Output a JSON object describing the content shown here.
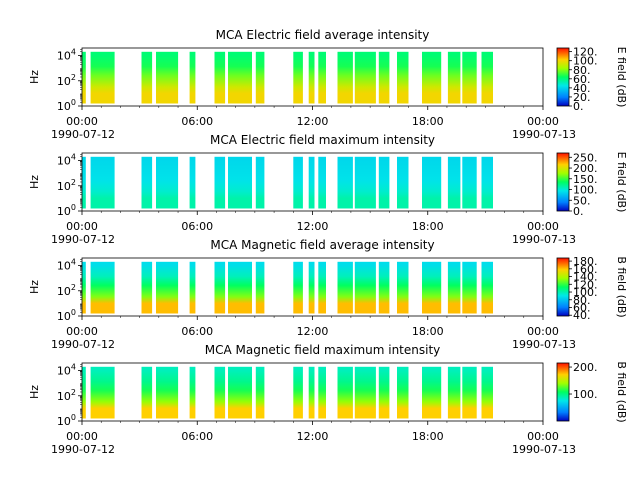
{
  "chart_data": [
    {
      "type": "heatmap",
      "title": "MCA  Electric field average intensity",
      "ylabel": "Hz",
      "yticks": [
        "10^0",
        "10^2",
        "10^4"
      ],
      "xticks": [
        "00:00",
        "06:00",
        "12:00",
        "18:00",
        "00:00"
      ],
      "xdates": [
        "1990-07-12",
        "1990-07-13"
      ],
      "xlim_hours": [
        0,
        24
      ],
      "ylim_log10": [
        0,
        4.6
      ],
      "colorbar_label": "E field (dB)",
      "colorbar_ticks": [
        "0.",
        "20.",
        "40.",
        "60.",
        "80.",
        "100.",
        "120."
      ],
      "colorbar_range": [
        0,
        128
      ],
      "data_intervals_hours": [
        [
          0,
          0.2
        ],
        [
          0.45,
          1.7
        ],
        [
          3.1,
          3.65
        ],
        [
          3.85,
          5.0
        ],
        [
          5.6,
          5.9
        ],
        [
          6.9,
          7.45
        ],
        [
          7.6,
          8.85
        ],
        [
          9.05,
          9.5
        ],
        [
          11.0,
          11.5
        ],
        [
          11.8,
          12.1
        ],
        [
          12.3,
          12.7
        ],
        [
          13.3,
          14.1
        ],
        [
          14.2,
          15.3
        ],
        [
          15.45,
          16.0
        ],
        [
          16.4,
          17.0
        ],
        [
          17.7,
          18.7
        ],
        [
          19.05,
          19.7
        ],
        [
          19.8,
          20.55
        ],
        [
          20.8,
          21.4
        ]
      ],
      "color_stops": [
        [
          0,
          "#0000c0"
        ],
        [
          0.15,
          "#0080ff"
        ],
        [
          0.35,
          "#00e8e8"
        ],
        [
          0.5,
          "#00ff60"
        ],
        [
          0.65,
          "#a0ff00"
        ],
        [
          0.8,
          "#ffd000"
        ],
        [
          1.0,
          "#ff1000"
        ]
      ],
      "intensity_profile": [
        [
          0.9,
          0.78
        ],
        [
          1.5,
          0.72
        ],
        [
          2.5,
          0.6
        ],
        [
          3.3,
          0.52
        ],
        [
          4.3,
          0.48
        ]
      ]
    },
    {
      "type": "heatmap",
      "title": "MCA  Electric field maximum intensity",
      "ylabel": "Hz",
      "yticks": [
        "10^0",
        "10^2",
        "10^4"
      ],
      "xticks": [
        "00:00",
        "06:00",
        "12:00",
        "18:00",
        "00:00"
      ],
      "xdates": [
        "1990-07-12",
        "1990-07-13"
      ],
      "xlim_hours": [
        0,
        24
      ],
      "ylim_log10": [
        0,
        4.6
      ],
      "colorbar_label": "E field (dB)",
      "colorbar_ticks": [
        "0.",
        "50.",
        "100.",
        "150.",
        "200.",
        "250."
      ],
      "colorbar_range": [
        0,
        270
      ],
      "data_intervals_hours": [
        [
          0,
          0.2
        ],
        [
          0.45,
          1.7
        ],
        [
          3.1,
          3.65
        ],
        [
          3.85,
          5.0
        ],
        [
          5.6,
          5.9
        ],
        [
          6.9,
          7.45
        ],
        [
          7.6,
          8.85
        ],
        [
          9.05,
          9.5
        ],
        [
          11.0,
          11.5
        ],
        [
          11.8,
          12.1
        ],
        [
          12.3,
          12.7
        ],
        [
          13.3,
          14.1
        ],
        [
          14.2,
          15.3
        ],
        [
          15.45,
          16.0
        ],
        [
          16.4,
          17.0
        ],
        [
          17.7,
          18.7
        ],
        [
          19.05,
          19.7
        ],
        [
          19.8,
          20.55
        ],
        [
          20.8,
          21.4
        ]
      ],
      "color_stops": [
        [
          0,
          "#0000c0"
        ],
        [
          0.15,
          "#0080ff"
        ],
        [
          0.35,
          "#00e8e8"
        ],
        [
          0.5,
          "#00ff60"
        ],
        [
          0.65,
          "#a0ff00"
        ],
        [
          0.8,
          "#ffd000"
        ],
        [
          1.0,
          "#ff1000"
        ]
      ],
      "intensity_profile": [
        [
          0.9,
          0.42
        ],
        [
          1.5,
          0.38
        ],
        [
          2.5,
          0.34
        ],
        [
          3.3,
          0.33
        ],
        [
          4.3,
          0.32
        ]
      ]
    },
    {
      "type": "heatmap",
      "title": "MCA  Magnetic field average intensity",
      "ylabel": "Hz",
      "yticks": [
        "10^0",
        "10^2",
        "10^4"
      ],
      "xticks": [
        "00:00",
        "06:00",
        "12:00",
        "18:00",
        "00:00"
      ],
      "xdates": [
        "1990-07-12",
        "1990-07-13"
      ],
      "xlim_hours": [
        0,
        24
      ],
      "ylim_log10": [
        0,
        4.6
      ],
      "colorbar_label": "B field (dB)",
      "colorbar_ticks": [
        "40.",
        "60.",
        "80.",
        "100.",
        "120.",
        "140.",
        "160.",
        "180."
      ],
      "colorbar_range": [
        38,
        188
      ],
      "data_intervals_hours": [
        [
          0,
          0.2
        ],
        [
          0.45,
          1.7
        ],
        [
          3.1,
          3.65
        ],
        [
          3.85,
          5.0
        ],
        [
          5.6,
          5.9
        ],
        [
          6.9,
          7.45
        ],
        [
          7.6,
          8.85
        ],
        [
          9.05,
          9.5
        ],
        [
          11.0,
          11.5
        ],
        [
          11.8,
          12.1
        ],
        [
          12.3,
          12.7
        ],
        [
          13.3,
          14.1
        ],
        [
          14.2,
          15.3
        ],
        [
          15.45,
          16.0
        ],
        [
          16.4,
          17.0
        ],
        [
          17.7,
          18.7
        ],
        [
          19.05,
          19.7
        ],
        [
          19.8,
          20.55
        ],
        [
          20.8,
          21.4
        ]
      ],
      "color_stops": [
        [
          0,
          "#0000c0"
        ],
        [
          0.15,
          "#0080ff"
        ],
        [
          0.35,
          "#00e8e8"
        ],
        [
          0.5,
          "#00ff60"
        ],
        [
          0.65,
          "#a0ff00"
        ],
        [
          0.8,
          "#ffd000"
        ],
        [
          1.0,
          "#ff1000"
        ]
      ],
      "intensity_profile": [
        [
          0.9,
          0.82
        ],
        [
          1.5,
          0.62
        ],
        [
          2.5,
          0.5
        ],
        [
          3.3,
          0.4
        ],
        [
          4.3,
          0.33
        ]
      ]
    },
    {
      "type": "heatmap",
      "title": "MCA  Magnetic field maximum intensity",
      "ylabel": "Hz",
      "yticks": [
        "10^0",
        "10^2",
        "10^4"
      ],
      "xticks": [
        "00:00",
        "06:00",
        "12:00",
        "18:00",
        "00:00"
      ],
      "xdates": [
        "1990-07-12",
        "1990-07-13"
      ],
      "xlim_hours": [
        0,
        24
      ],
      "ylim_log10": [
        0,
        4.6
      ],
      "colorbar_label": "B field (dB)",
      "colorbar_ticks": [
        "100.",
        "200."
      ],
      "colorbar_range": [
        0,
        215
      ],
      "data_intervals_hours": [
        [
          0,
          0.2
        ],
        [
          0.45,
          1.7
        ],
        [
          3.1,
          3.65
        ],
        [
          3.85,
          5.0
        ],
        [
          5.6,
          5.9
        ],
        [
          6.9,
          7.45
        ],
        [
          7.6,
          8.85
        ],
        [
          9.05,
          9.5
        ],
        [
          11.0,
          11.5
        ],
        [
          11.8,
          12.1
        ],
        [
          12.3,
          12.7
        ],
        [
          13.3,
          14.1
        ],
        [
          14.2,
          15.3
        ],
        [
          15.45,
          16.0
        ],
        [
          16.4,
          17.0
        ],
        [
          17.7,
          18.7
        ],
        [
          19.05,
          19.7
        ],
        [
          19.8,
          20.55
        ],
        [
          20.8,
          21.4
        ]
      ],
      "color_stops": [
        [
          0,
          "#0000c0"
        ],
        [
          0.15,
          "#0080ff"
        ],
        [
          0.35,
          "#00e8e8"
        ],
        [
          0.5,
          "#00ff60"
        ],
        [
          0.65,
          "#a0ff00"
        ],
        [
          0.8,
          "#ffd000"
        ],
        [
          1.0,
          "#ff1000"
        ]
      ],
      "intensity_profile": [
        [
          0.9,
          0.8
        ],
        [
          1.5,
          0.64
        ],
        [
          2.5,
          0.52
        ],
        [
          3.3,
          0.45
        ],
        [
          4.3,
          0.4
        ]
      ]
    }
  ]
}
